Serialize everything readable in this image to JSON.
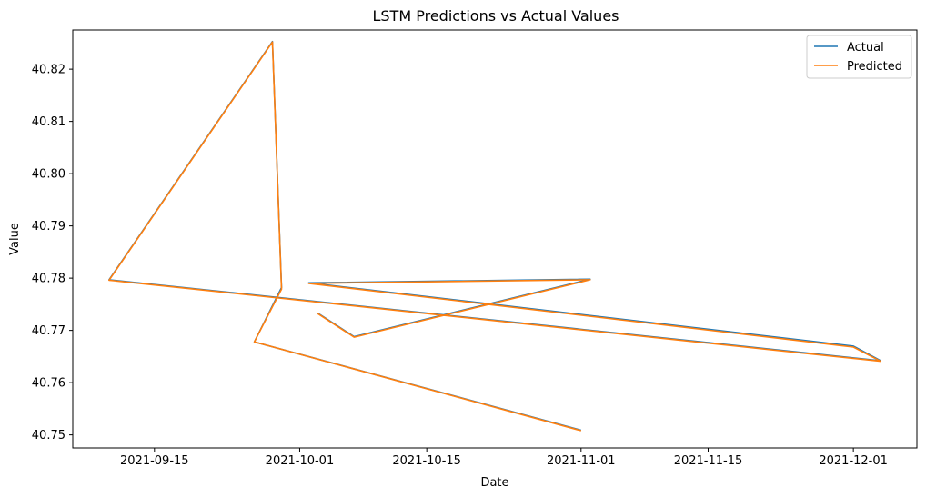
{
  "chart_data": {
    "type": "line",
    "title": "LSTM Predictions vs Actual Values",
    "xlabel": "Date",
    "ylabel": "Value",
    "x_ticks": [
      "2021-09-15",
      "2021-10-01",
      "2021-10-15",
      "2021-11-01",
      "2021-11-15",
      "2021-12-01"
    ],
    "y_ticks": [
      40.75,
      40.76,
      40.77,
      40.78,
      40.79,
      40.8,
      40.81,
      40.82
    ],
    "xlim": [
      "2021-09-06",
      "2021-12-08"
    ],
    "ylim": [
      40.7475,
      40.8275
    ],
    "legend_position": "top-right",
    "x": [
      "2021-11-01",
      "2021-09-26",
      "2021-09-29",
      "2021-09-28",
      "2021-09-10",
      "2021-12-04",
      "2021-12-01",
      "2021-10-02",
      "2021-11-02",
      "2021-10-07",
      "2021-10-03"
    ],
    "series": [
      {
        "name": "Actual",
        "color": "#1f77b4",
        "values": [
          40.7509,
          40.7678,
          40.7782,
          40.8253,
          40.7797,
          40.7642,
          40.767,
          40.7791,
          40.7798,
          40.7688,
          40.7733
        ]
      },
      {
        "name": "Predicted",
        "color": "#ff7f0e",
        "values": [
          40.7508,
          40.7678,
          40.7779,
          40.8252,
          40.7796,
          40.7641,
          40.7668,
          40.779,
          40.7797,
          40.7687,
          40.7732
        ]
      }
    ]
  }
}
